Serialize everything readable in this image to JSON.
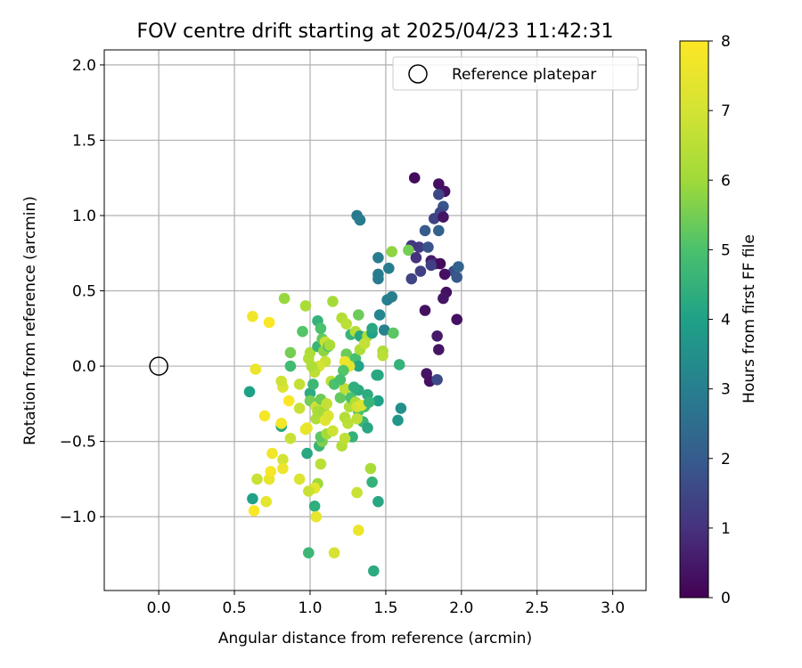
{
  "chart_data": {
    "type": "scatter",
    "title": "FOV centre drift starting at 2025/04/23 11:42:31",
    "xlabel": "Angular distance from reference (arcmin)",
    "ylabel": "Rotation from reference (arcmin)",
    "xlim": [
      -0.36,
      3.22
    ],
    "ylim": [
      -1.49,
      2.1
    ],
    "grid": true,
    "x_ticks": [
      "0.0",
      "0.5",
      "1.0",
      "1.5",
      "2.0",
      "2.5",
      "3.0"
    ],
    "y_ticks": [
      "2.0",
      "1.5",
      "1.0",
      "0.5",
      "0.0",
      "−0.5",
      "−1.0"
    ],
    "legend": {
      "position": "upper-right",
      "label": "Reference platepar"
    },
    "reference_point": {
      "x": 0.0,
      "y": 0.0
    },
    "colorbar": {
      "label": "Hours from first FF file",
      "min": 0,
      "max": 8,
      "ticks": [
        "0",
        "1",
        "2",
        "3",
        "4",
        "5",
        "6",
        "7",
        "8"
      ],
      "colormap": "viridis"
    },
    "points": [
      [
        1.69,
        1.25,
        0.2
      ],
      [
        1.85,
        1.21,
        0.3
      ],
      [
        1.89,
        1.16,
        0.3
      ],
      [
        1.85,
        1.14,
        1.5
      ],
      [
        1.88,
        1.06,
        1.8
      ],
      [
        1.86,
        1.02,
        1.6
      ],
      [
        1.82,
        0.98,
        1.4
      ],
      [
        1.88,
        0.99,
        0.4
      ],
      [
        1.76,
        0.9,
        2.0
      ],
      [
        1.85,
        0.9,
        2.2
      ],
      [
        1.72,
        0.79,
        1.2
      ],
      [
        1.78,
        0.79,
        1.8
      ],
      [
        1.67,
        0.8,
        1.1
      ],
      [
        1.65,
        0.77,
        5.5
      ],
      [
        1.7,
        0.72,
        1.0
      ],
      [
        1.8,
        0.7,
        0.5
      ],
      [
        1.83,
        0.68,
        0.8
      ],
      [
        1.86,
        0.68,
        0.2
      ],
      [
        1.8,
        0.67,
        1.3
      ],
      [
        1.95,
        0.63,
        1.7
      ],
      [
        1.98,
        0.66,
        2.2
      ],
      [
        1.73,
        0.63,
        1.3
      ],
      [
        1.89,
        0.61,
        0.3
      ],
      [
        1.97,
        0.59,
        1.9
      ],
      [
        1.67,
        0.58,
        1.4
      ],
      [
        1.9,
        0.49,
        0.3
      ],
      [
        1.88,
        0.45,
        0.4
      ],
      [
        1.76,
        0.37,
        0.3
      ],
      [
        1.97,
        0.31,
        0.3
      ],
      [
        1.84,
        0.2,
        0.5
      ],
      [
        1.85,
        0.11,
        0.4
      ],
      [
        1.77,
        -0.05,
        0.4
      ],
      [
        1.79,
        -0.1,
        0.3
      ],
      [
        1.84,
        -0.09,
        1.6
      ],
      [
        1.31,
        1.0,
        2.8
      ],
      [
        1.33,
        0.97,
        2.9
      ],
      [
        1.45,
        0.72,
        2.9
      ],
      [
        1.54,
        0.76,
        5.8
      ],
      [
        1.45,
        0.61,
        2.9
      ],
      [
        1.45,
        0.58,
        2.9
      ],
      [
        1.52,
        0.65,
        2.9
      ],
      [
        1.51,
        0.44,
        3.0
      ],
      [
        1.54,
        0.46,
        3.0
      ],
      [
        1.46,
        0.34,
        3.2
      ],
      [
        1.49,
        0.24,
        3.1
      ],
      [
        1.55,
        0.22,
        5.2
      ],
      [
        1.59,
        0.01,
        4.5
      ],
      [
        1.48,
        0.1,
        6.3
      ],
      [
        1.48,
        0.07,
        6.5
      ],
      [
        1.6,
        -0.28,
        3.5
      ],
      [
        1.58,
        -0.36,
        3.7
      ],
      [
        1.44,
        -0.06,
        4.2
      ],
      [
        1.45,
        -0.23,
        4.0
      ],
      [
        1.38,
        -0.19,
        4.3
      ],
      [
        1.36,
        -0.27,
        4.8
      ],
      [
        1.32,
        -0.3,
        5.0
      ],
      [
        1.35,
        -0.37,
        4.6
      ],
      [
        1.38,
        -0.41,
        4.2
      ],
      [
        1.28,
        -0.47,
        4.5
      ],
      [
        1.45,
        -0.9,
        4.2
      ],
      [
        1.41,
        -0.77,
        4.5
      ],
      [
        1.4,
        -0.68,
        6.2
      ],
      [
        1.31,
        -0.84,
        6.8
      ],
      [
        1.32,
        -1.09,
        7.6
      ],
      [
        1.42,
        -1.36,
        4.3
      ],
      [
        1.16,
        -1.24,
        7.1
      ],
      [
        0.99,
        -1.24,
        4.7
      ],
      [
        1.03,
        -0.93,
        4.4
      ],
      [
        1.04,
        -1.0,
        7.5
      ],
      [
        1.05,
        -0.78,
        6.0
      ],
      [
        1.03,
        -0.81,
        7.4
      ],
      [
        0.99,
        -0.83,
        6.8
      ],
      [
        0.93,
        -0.75,
        7.2
      ],
      [
        1.07,
        -0.65,
        6.5
      ],
      [
        0.98,
        -0.58,
        4.2
      ],
      [
        1.06,
        -0.53,
        4.6
      ],
      [
        1.08,
        -0.5,
        5.6
      ],
      [
        1.07,
        -0.47,
        5.2
      ],
      [
        1.11,
        -0.45,
        6.1
      ],
      [
        1.15,
        -0.43,
        6.9
      ],
      [
        0.87,
        -0.48,
        6.8
      ],
      [
        0.81,
        -0.4,
        4.2
      ],
      [
        0.81,
        -0.38,
        7.8
      ],
      [
        0.98,
        -0.41,
        7.7
      ],
      [
        1.04,
        -0.35,
        6.3
      ],
      [
        0.62,
        -0.88,
        4.0
      ],
      [
        0.63,
        -0.96,
        7.9
      ],
      [
        0.65,
        -0.75,
        6.8
      ],
      [
        0.71,
        -0.9,
        7.4
      ],
      [
        0.73,
        -0.75,
        7.5
      ],
      [
        0.74,
        -0.7,
        7.8
      ],
      [
        0.75,
        -0.58,
        7.7
      ],
      [
        0.82,
        -0.62,
        7.0
      ],
      [
        0.82,
        -0.68,
        7.6
      ],
      [
        0.6,
        -0.17,
        4.0
      ],
      [
        0.7,
        -0.33,
        7.8
      ],
      [
        0.82,
        -0.14,
        7.2
      ],
      [
        0.86,
        -0.23,
        7.9
      ],
      [
        0.81,
        -0.1,
        6.9
      ],
      [
        0.93,
        -0.28,
        6.8
      ],
      [
        0.93,
        -0.12,
        6.7
      ],
      [
        1.0,
        -0.18,
        4.3
      ],
      [
        1.02,
        -0.12,
        4.7
      ],
      [
        1.0,
        -0.23,
        5.5
      ],
      [
        1.04,
        -0.27,
        6.9
      ],
      [
        1.05,
        -0.3,
        6.2
      ],
      [
        1.07,
        -0.22,
        5.4
      ],
      [
        1.09,
        -0.3,
        6.1
      ],
      [
        1.1,
        -0.36,
        7.3
      ],
      [
        1.12,
        -0.33,
        7.2
      ],
      [
        1.11,
        -0.25,
        6.7
      ],
      [
        1.14,
        -0.1,
        6.6
      ],
      [
        1.16,
        -0.12,
        5.0
      ],
      [
        1.2,
        -0.21,
        5.3
      ],
      [
        1.23,
        -0.34,
        6.4
      ],
      [
        1.25,
        -0.38,
        6.5
      ],
      [
        1.26,
        -0.27,
        6.3
      ],
      [
        1.23,
        -0.15,
        6.6
      ],
      [
        1.27,
        -0.21,
        5.0
      ],
      [
        1.3,
        -0.24,
        6.3
      ],
      [
        1.31,
        -0.27,
        7.0
      ],
      [
        1.31,
        -0.35,
        6.6
      ],
      [
        1.21,
        -0.53,
        6.4
      ],
      [
        1.23,
        -0.48,
        6.6
      ],
      [
        1.34,
        -0.26,
        7.2
      ],
      [
        1.39,
        -0.24,
        4.6
      ],
      [
        0.87,
        0.0,
        4.8
      ],
      [
        0.87,
        0.09,
        5.5
      ],
      [
        0.83,
        0.45,
        5.9
      ],
      [
        0.62,
        0.33,
        7.7
      ],
      [
        0.64,
        -0.02,
        7.6
      ],
      [
        0.73,
        0.29,
        7.9
      ],
      [
        0.95,
        0.23,
        5.1
      ],
      [
        0.97,
        0.4,
        6.2
      ],
      [
        0.99,
        0.05,
        6.4
      ],
      [
        1.0,
        0.09,
        6.3
      ],
      [
        1.02,
        -0.01,
        5.6
      ],
      [
        1.05,
        0.3,
        4.5
      ],
      [
        1.05,
        0.13,
        4.6
      ],
      [
        1.08,
        0.18,
        5.3
      ],
      [
        1.09,
        0.1,
        5.8
      ],
      [
        1.1,
        0.16,
        6.8
      ],
      [
        1.12,
        0.13,
        5.2
      ],
      [
        1.13,
        0.14,
        6.2
      ],
      [
        1.1,
        0.03,
        6.8
      ],
      [
        1.06,
        0.0,
        7.1
      ],
      [
        1.03,
        -0.04,
        6.6
      ],
      [
        1.01,
        0.0,
        6.3
      ],
      [
        1.07,
        0.25,
        5.0
      ],
      [
        1.15,
        0.43,
        6.1
      ],
      [
        1.21,
        0.32,
        6.4
      ],
      [
        1.24,
        0.28,
        6.5
      ],
      [
        1.27,
        0.21,
        4.6
      ],
      [
        1.3,
        0.23,
        6.4
      ],
      [
        1.32,
        0.34,
        5.4
      ],
      [
        1.33,
        0.2,
        4.2
      ],
      [
        1.38,
        0.2,
        6.3
      ],
      [
        1.41,
        0.22,
        4.0
      ],
      [
        1.41,
        0.25,
        4.2
      ],
      [
        1.24,
        0.08,
        5.4
      ],
      [
        1.3,
        0.05,
        4.9
      ],
      [
        1.32,
        0.0,
        4.1
      ],
      [
        1.33,
        0.11,
        6.3
      ],
      [
        1.36,
        0.15,
        6.7
      ],
      [
        1.26,
        0.0,
        7.3
      ],
      [
        1.23,
        0.03,
        7.6
      ],
      [
        1.22,
        -0.03,
        5.1
      ],
      [
        1.2,
        -0.09,
        4.9
      ],
      [
        0.97,
        -0.42,
        7.5
      ],
      [
        1.45,
        -0.06,
        4.2
      ],
      [
        1.32,
        -0.16,
        4.3
      ],
      [
        1.29,
        -0.14,
        4.4
      ]
    ]
  }
}
